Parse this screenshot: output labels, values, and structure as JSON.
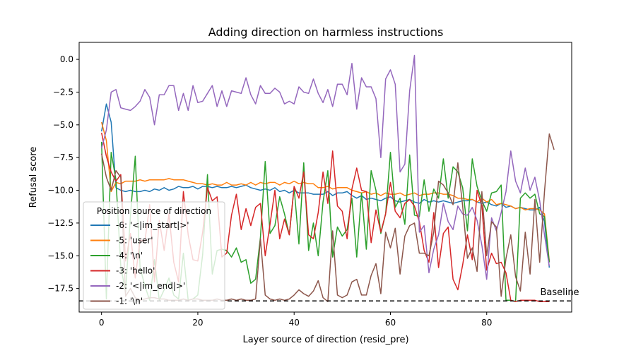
{
  "chart_data": {
    "type": "line",
    "title": "Adding direction on harmless instructions",
    "xlabel": "Layer source of direction (resid_pre)",
    "ylabel": "Refusal score",
    "xlim": [
      -4.65,
      97.65
    ],
    "ylim": [
      -19.3,
      1.3
    ],
    "xticks": [
      0,
      20,
      40,
      60,
      80
    ],
    "yticks": [
      0.0,
      -2.5,
      -5.0,
      -7.5,
      -10.0,
      -12.5,
      -15.0,
      -17.5
    ],
    "ytick_labels": [
      "0.0",
      "−2.5",
      "−5.0",
      "−7.5",
      "−10.0",
      "−12.5",
      "−15.0",
      "−17.5"
    ],
    "grid": false,
    "legend": {
      "title": "Position source of direction",
      "position": "lower-left"
    },
    "baseline": {
      "value": -18.45,
      "label": "Baseline",
      "style": "dashed",
      "color": "#000000"
    },
    "series": [
      {
        "name": "-6: '<|im_start|>'",
        "color": "#1f77b4",
        "values": [
          -5.5,
          -3.4,
          -4.8,
          -9.8,
          -10.0,
          -10.1,
          -10.0,
          -10.1,
          -10.1,
          -10.0,
          -10.1,
          -9.9,
          -10.0,
          -9.8,
          -10.0,
          -9.9,
          -9.7,
          -9.8,
          -9.8,
          -9.7,
          -9.9,
          -9.7,
          -9.7,
          -9.8,
          -9.7,
          -9.8,
          -9.8,
          -9.7,
          -9.8,
          -9.7,
          -9.6,
          -9.8,
          -9.9,
          -10.0,
          -9.9,
          -10.0,
          -9.8,
          -10.1,
          -10.0,
          -10.2,
          -10.0,
          -10.2,
          -10.2,
          -10.2,
          -10.3,
          -10.3,
          -10.3,
          -10.1,
          -10.4,
          -10.2,
          -10.2,
          -10.1,
          -10.4,
          -10.6,
          -10.4,
          -10.7,
          -10.6,
          -10.7,
          -10.8,
          -10.6,
          -10.5,
          -10.8,
          -10.9,
          -10.8,
          -10.7,
          -10.9,
          -11.0,
          -10.7,
          -10.9,
          -10.8,
          -10.9,
          -10.8,
          -10.9,
          -11.0,
          -10.9,
          -10.8,
          -10.8,
          -10.7,
          -10.9,
          -11.0,
          -10.9,
          -11.1,
          -11.2,
          -11.0,
          -11.3,
          -11.2,
          -11.4,
          -11.3,
          -11.4,
          -11.5,
          -11.5,
          -11.3,
          -12.4,
          -15.9
        ]
      },
      {
        "name": "-5: 'user'",
        "color": "#ff7f0e",
        "values": [
          -4.8,
          -6.2,
          -10.1,
          -9.4,
          -9.5,
          -9.3,
          -9.3,
          -9.3,
          -9.2,
          -9.3,
          -9.2,
          -9.2,
          -9.2,
          -9.2,
          -9.1,
          -9.2,
          -9.2,
          -9.2,
          -9.3,
          -9.4,
          -9.5,
          -9.5,
          -9.6,
          -9.5,
          -9.6,
          -9.6,
          -9.4,
          -9.6,
          -9.6,
          -9.5,
          -9.6,
          -9.4,
          -9.6,
          -9.4,
          -9.5,
          -9.4,
          -9.4,
          -9.6,
          -9.4,
          -9.5,
          -9.3,
          -9.5,
          -9.4,
          -9.5,
          -9.5,
          -9.8,
          -9.8,
          -9.7,
          -9.9,
          -9.8,
          -9.8,
          -9.8,
          -10.0,
          -10.1,
          -10.2,
          -10.1,
          -10.3,
          -10.2,
          -10.4,
          -10.2,
          -10.3,
          -10.3,
          -10.2,
          -10.4,
          -10.3,
          -10.2,
          -10.4,
          -10.3,
          -10.3,
          -10.2,
          -10.2,
          -10.3,
          -10.3,
          -10.4,
          -10.6,
          -10.6,
          -10.7,
          -10.7,
          -10.9,
          -10.6,
          -10.9,
          -10.7,
          -11.1,
          -11.0,
          -11.1,
          -11.2,
          -11.4,
          -11.3,
          -11.5,
          -11.4,
          -11.4,
          -11.5,
          -11.8,
          -15.4
        ]
      },
      {
        "name": "-4: '\\n'",
        "color": "#2ca02c",
        "values": [
          -6.3,
          -18.3,
          -7.1,
          -9.2,
          -15.8,
          -17.8,
          -11.9,
          -7.4,
          -15.9,
          -17.3,
          -18.4,
          -15.3,
          -18.4,
          -17.6,
          -16.7,
          -18.0,
          -18.3,
          -14.8,
          -18.4,
          -18.3,
          -18.0,
          -14.9,
          -8.8,
          -16.4,
          -14.6,
          -14.5,
          -14.6,
          -15.1,
          -14.4,
          -15.5,
          -15.3,
          -17.1,
          -16.8,
          -13.6,
          -7.8,
          -13.3,
          -12.7,
          -10.5,
          -11.8,
          -13.4,
          -9.8,
          -14.1,
          -7.9,
          -14.6,
          -12.5,
          -15.0,
          -10.9,
          -8.5,
          -15.1,
          -12.8,
          -13.5,
          -13.0,
          -10.6,
          -15.1,
          -10.2,
          -14.5,
          -8.5,
          -10.0,
          -13.3,
          -11.8,
          -7.1,
          -11.3,
          -10.6,
          -12.6,
          -7.3,
          -11.9,
          -12.0,
          -9.2,
          -11.6,
          -9.9,
          -10.6,
          -7.6,
          -10.6,
          -8.2,
          -8.6,
          -9.8,
          -13.1,
          -7.6,
          -9.7,
          -10.8,
          -11.6,
          -10.2,
          -10.1,
          -9.6,
          -18.4,
          -18.4,
          -18.5,
          -10.6,
          -10.2,
          -10.6,
          -10.3,
          -11.8,
          -12.0,
          -15.5
        ]
      },
      {
        "name": "-3: 'hello'",
        "color": "#d62728",
        "values": [
          -5.6,
          -7.4,
          -8.6,
          -9.3,
          -8.8,
          -15.4,
          -13.3,
          -16.7,
          -13.8,
          -13.9,
          -11.1,
          -17.0,
          -12.3,
          -14.6,
          -11.8,
          -15.5,
          -17.0,
          -10.1,
          -13.4,
          -15.3,
          -15.4,
          -13.2,
          -9.8,
          -10.8,
          -10.5,
          -15.1,
          -14.8,
          -11.9,
          -10.3,
          -13.0,
          -11.4,
          -12.7,
          -11.3,
          -11.0,
          -15.0,
          -12.6,
          -10.0,
          -13.7,
          -12.2,
          -13.4,
          -9.7,
          -10.6,
          -8.6,
          -13.4,
          -13.7,
          -11.7,
          -8.6,
          -11.0,
          -7.0,
          -11.2,
          -11.6,
          -13.7,
          -9.9,
          -8.3,
          -10.0,
          -10.1,
          -14.0,
          -11.5,
          -13.2,
          -11.8,
          -9.4,
          -11.6,
          -12.1,
          -11.0,
          -10.7,
          -11.2,
          -12.4,
          -14.6,
          -15.5,
          -11.7,
          -15.9,
          -13.3,
          -12.8,
          -16.8,
          -17.6,
          -15.7,
          -13.4,
          -15.3,
          -10.0,
          -11.2,
          -16.1,
          -14.8,
          -15.6,
          -15.5,
          -16.3,
          -18.4,
          -18.5,
          -18.4,
          -18.4,
          -18.4,
          -18.4,
          -18.5,
          -18.5,
          -18.5
        ]
      },
      {
        "name": "-2: '<|im_end|>'",
        "color": "#9467bd",
        "values": [
          -6.8,
          -5.4,
          -2.5,
          -2.3,
          -3.7,
          -3.8,
          -3.9,
          -3.6,
          -3.2,
          -2.3,
          -2.9,
          -5.0,
          -2.7,
          -2.7,
          -2.0,
          -2.0,
          -3.9,
          -2.6,
          -3.9,
          -2.0,
          -3.3,
          -3.2,
          -2.6,
          -2.0,
          -3.6,
          -2.4,
          -3.6,
          -2.4,
          -2.5,
          -2.6,
          -1.4,
          -2.7,
          -3.4,
          -2.0,
          -2.6,
          -2.6,
          -2.2,
          -2.5,
          -3.4,
          -3.2,
          -3.4,
          -2.1,
          -2.5,
          -2.6,
          -1.5,
          -2.6,
          -3.3,
          -2.3,
          -3.6,
          -1.9,
          -1.9,
          -2.7,
          -0.3,
          -3.8,
          -1.4,
          -2.1,
          -2.1,
          -3.0,
          -7.5,
          -1.5,
          -0.8,
          -1.9,
          -8.6,
          -8.0,
          -2.4,
          0.3,
          -13.2,
          -12.7,
          -16.3,
          -14.5,
          -13.4,
          -11.0,
          -12.4,
          -13.0,
          -11.2,
          -11.8,
          -11.9,
          -11.3,
          -12.3,
          -14.2,
          -16.8,
          -12.1,
          -13.1,
          -11.7,
          -10.1,
          -7.0,
          -9.3,
          -10.2,
          -8.3,
          -10.0,
          -9.0,
          -10.8,
          -13.4,
          -15.8
        ]
      },
      {
        "name": "-1: '\\n'",
        "color": "#8c564b",
        "values": [
          -7.2,
          -9.0,
          -10.0,
          -8.5,
          -9.0,
          -18.1,
          -17.5,
          -18.2,
          -18.4,
          -18.3,
          -18.2,
          -18.2,
          -18.3,
          -18.3,
          -18.4,
          -18.4,
          -18.4,
          -18.3,
          -18.4,
          -18.3,
          -18.3,
          -18.4,
          -18.4,
          -18.4,
          -18.3,
          -18.4,
          -18.4,
          -18.3,
          -18.4,
          -18.3,
          -18.4,
          -18.4,
          -18.3,
          -13.7,
          -18.0,
          -18.3,
          -18.4,
          -18.3,
          -18.4,
          -18.3,
          -18.0,
          -17.6,
          -17.9,
          -18.1,
          -17.7,
          -16.9,
          -18.2,
          -18.5,
          -13.1,
          -18.0,
          -18.2,
          -18.0,
          -17.0,
          -16.8,
          -18.0,
          -18.0,
          -16.5,
          -15.6,
          -17.9,
          -13.2,
          -14.4,
          -12.9,
          -16.4,
          -13.5,
          -12.7,
          -12.5,
          -14.8,
          -14.8,
          -15.0,
          -13.2,
          -9.3,
          -9.6,
          -10.2,
          -11.1,
          -7.9,
          -11.2,
          -15.2,
          -14.4,
          -16.2,
          -10.1,
          -15.0,
          -12.4,
          -12.8,
          -18.1,
          -15.2,
          -13.4,
          -16.6,
          -17.7,
          -13.2,
          -16.4,
          -10.7,
          -15.5,
          -10.1,
          -5.7,
          -6.9
        ]
      }
    ]
  }
}
